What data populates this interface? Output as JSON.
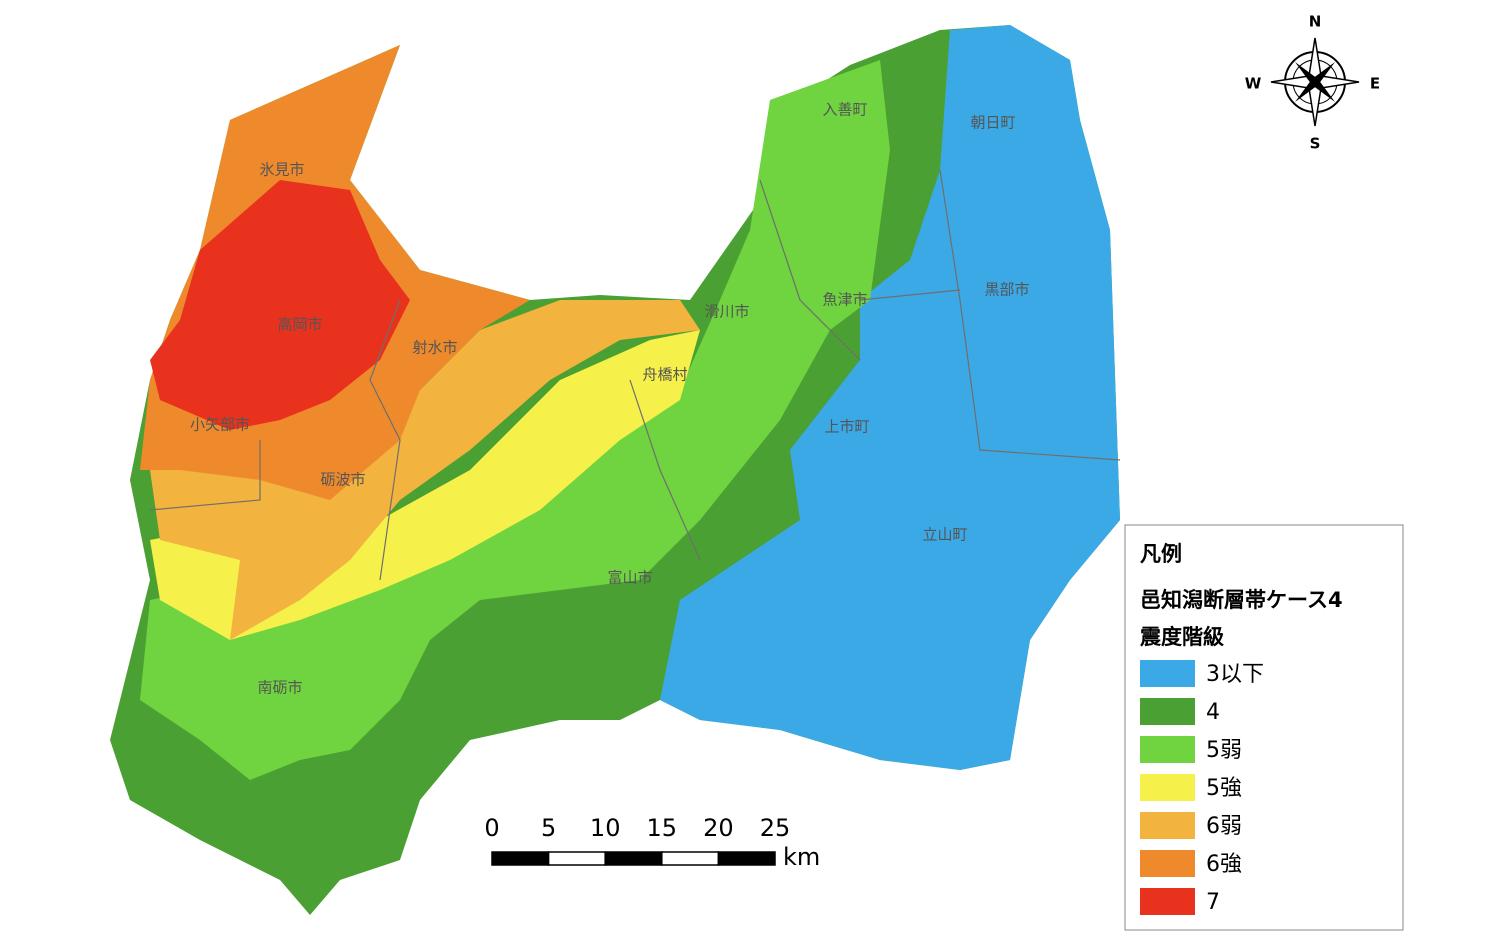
{
  "compass": {
    "north": "N",
    "east": "E",
    "south": "S",
    "west": "W"
  },
  "places": [
    "氷見市",
    "高岡市",
    "射水市",
    "小矢部市",
    "砺波市",
    "南砺市",
    "富山市",
    "舟橋村",
    "滑川市",
    "魚津市",
    "上市町",
    "立山町",
    "入善町",
    "朝日町",
    "黒部市"
  ],
  "scale_bar": {
    "ticks": [
      0,
      5,
      10,
      15,
      20,
      25
    ],
    "unit": "km"
  },
  "legend": {
    "title": "凡例",
    "subtitle": "邑知潟断層帯ケース4",
    "heading": "震度階級",
    "items": [
      {
        "label": "3以下",
        "color": "#3ba9e6"
      },
      {
        "label": "4",
        "color": "#4aa032"
      },
      {
        "label": "5弱",
        "color": "#6fd43f"
      },
      {
        "label": "5強",
        "color": "#f6f04a"
      },
      {
        "label": "6弱",
        "color": "#f2b33f"
      },
      {
        "label": "6強",
        "color": "#ee8a2c"
      },
      {
        "label": "7",
        "color": "#e8321e"
      }
    ]
  }
}
